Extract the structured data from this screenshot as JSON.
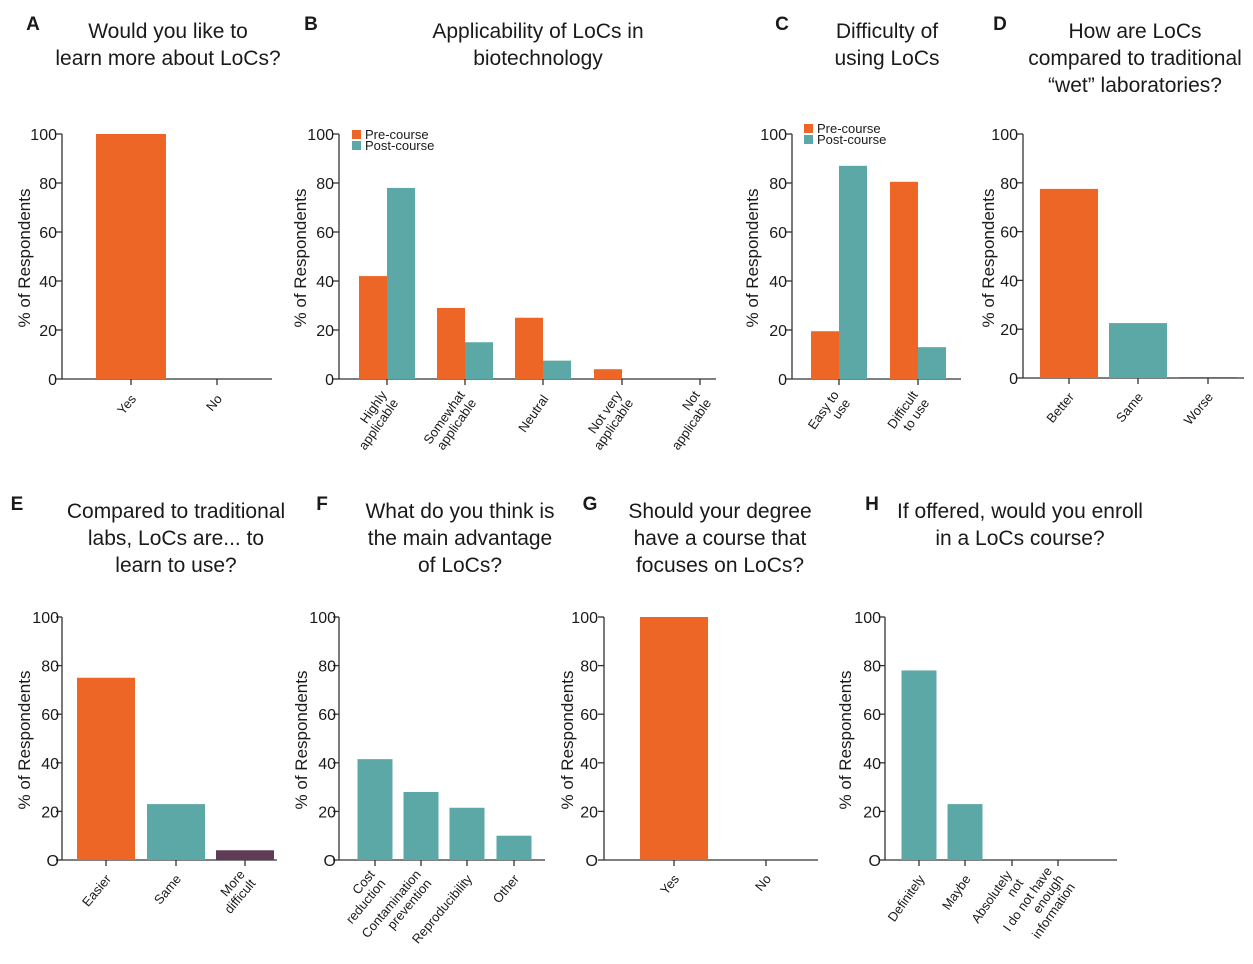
{
  "colors": {
    "pre": "#ed6625",
    "post": "#5ba8a6",
    "purple": "#5f3b58",
    "axis": "#333333",
    "text": "#1a1a1a"
  },
  "chart_data": [
    {
      "panel": "A",
      "type": "bar",
      "title": [
        "Would you like to",
        "learn more about LoCs?"
      ],
      "ylabel": "% of Respondents",
      "ylim": [
        0,
        100
      ],
      "yticks": [
        "0",
        "20",
        "40",
        "60",
        "80",
        "100"
      ],
      "categories": [
        [
          "Yes"
        ],
        [
          "No"
        ]
      ],
      "values": [
        100,
        0
      ],
      "bar_colors": [
        "pre",
        "pre"
      ]
    },
    {
      "panel": "B",
      "type": "bar",
      "title": [
        "Applicability of LoCs in",
        "biotechnology"
      ],
      "ylabel": "% of Respondents",
      "ylim": [
        0,
        100
      ],
      "yticks": [
        "0",
        "20",
        "40",
        "60",
        "80",
        "100"
      ],
      "categories": [
        [
          "Highly",
          "applicable"
        ],
        [
          "Somewhat",
          "applicable"
        ],
        [
          "Neutral"
        ],
        [
          "Not very",
          "applicable"
        ],
        [
          "Not",
          "applicable"
        ]
      ],
      "series": [
        {
          "name": "Pre-course",
          "color": "pre",
          "values": [
            42,
            29,
            25,
            4,
            0
          ]
        },
        {
          "name": "Post-course",
          "color": "post",
          "values": [
            78,
            15,
            7.5,
            0,
            0
          ]
        }
      ],
      "legend": "top-left"
    },
    {
      "panel": "C",
      "type": "bar",
      "title": [
        "Difficulty of",
        "using LoCs"
      ],
      "ylabel": "% of Respondents",
      "ylim": [
        0,
        100
      ],
      "yticks": [
        "0",
        "20",
        "40",
        "60",
        "80",
        "100"
      ],
      "categories": [
        [
          "Easy to",
          "use"
        ],
        [
          "Difficult",
          "to use"
        ]
      ],
      "series": [
        {
          "name": "Pre-course",
          "color": "pre",
          "values": [
            19.5,
            80.5
          ]
        },
        {
          "name": "Post-course",
          "color": "post",
          "values": [
            87,
            13
          ]
        }
      ],
      "legend": "top-left"
    },
    {
      "panel": "D",
      "type": "bar",
      "title": [
        "How are LoCs",
        "compared to traditional",
        "“wet” laboratories?"
      ],
      "ylabel": "% of Respondents",
      "ylim": [
        0,
        100
      ],
      "yticks": [
        "0",
        "20",
        "40",
        "60",
        "80",
        "100"
      ],
      "categories": [
        [
          "Better"
        ],
        [
          "Same"
        ],
        [
          "Worse"
        ]
      ],
      "values": [
        77.5,
        22.5,
        0.3
      ],
      "bar_colors": [
        "pre",
        "post",
        "purple"
      ]
    },
    {
      "panel": "E",
      "type": "bar",
      "title": [
        "Compared to traditional",
        "labs, LoCs are... to",
        "learn to use?"
      ],
      "ylabel": "% of Respondents",
      "ylim": [
        0,
        100
      ],
      "yticks": [
        "O",
        "20",
        "40",
        "60",
        "80",
        "100"
      ],
      "categories": [
        [
          "Easier"
        ],
        [
          "Same"
        ],
        [
          "More",
          "difficult"
        ]
      ],
      "values": [
        75,
        23,
        4
      ],
      "bar_colors": [
        "pre",
        "post",
        "purple"
      ]
    },
    {
      "panel": "F",
      "type": "bar",
      "title": [
        "What do you think is",
        "the main advantage",
        "of LoCs?"
      ],
      "ylabel": "% of Respondents",
      "ylim": [
        0,
        100
      ],
      "yticks": [
        "O",
        "20",
        "40",
        "60",
        "80",
        "100"
      ],
      "categories": [
        [
          "Cost",
          "reduction"
        ],
        [
          "Contamination",
          "prevention"
        ],
        [
          "Reproducibility"
        ],
        [
          "Other"
        ]
      ],
      "values": [
        41.5,
        28,
        21.5,
        10
      ],
      "bar_colors": [
        "post",
        "post",
        "post",
        "post"
      ]
    },
    {
      "panel": "G",
      "type": "bar",
      "title": [
        "Should your degree",
        "have a course that",
        "focuses on LoCs?"
      ],
      "ylabel": "% of Respondents",
      "ylim": [
        0,
        100
      ],
      "yticks": [
        "O",
        "20",
        "40",
        "60",
        "80",
        "100"
      ],
      "categories": [
        [
          "Yes"
        ],
        [
          "No"
        ]
      ],
      "values": [
        100,
        0
      ],
      "bar_colors": [
        "pre",
        "pre"
      ]
    },
    {
      "panel": "H",
      "type": "bar",
      "title": [
        "If offered, would you enroll",
        "in a LoCs course?"
      ],
      "ylabel": "% of Respondents",
      "ylim": [
        0,
        100
      ],
      "yticks": [
        "O",
        "20",
        "40",
        "60",
        "80",
        "100"
      ],
      "categories": [
        [
          "Definitely"
        ],
        [
          "Maybe"
        ],
        [
          "Absolutely",
          "not"
        ],
        [
          "I do not have",
          "enough",
          "information"
        ]
      ],
      "values": [
        78,
        23,
        0,
        0
      ],
      "bar_colors": [
        "post",
        "post",
        "post",
        "post"
      ]
    }
  ]
}
